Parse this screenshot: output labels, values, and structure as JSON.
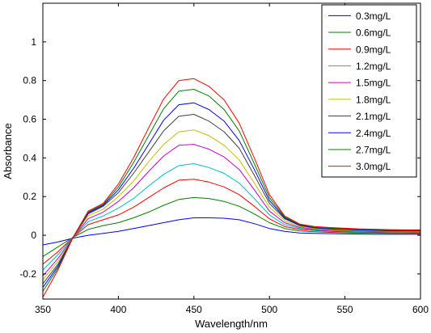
{
  "chart_data": {
    "type": "line",
    "title": "",
    "xlabel": "Wavelength/nm",
    "ylabel": "Absorbance",
    "xlim": [
      350,
      600
    ],
    "ylim": [
      -0.33,
      1.2
    ],
    "xticks": [
      350,
      400,
      450,
      500,
      550,
      600
    ],
    "yticks": [
      -0.2,
      0,
      0.2,
      0.4,
      0.6,
      0.8,
      1
    ],
    "grid": false,
    "legend_position": "top-right",
    "x": [
      350,
      360,
      370,
      380,
      390,
      400,
      410,
      420,
      430,
      440,
      450,
      460,
      470,
      480,
      490,
      500,
      510,
      520,
      530,
      540,
      550,
      560,
      570,
      580,
      590,
      600
    ],
    "series": [
      {
        "name": "0.3mg/L",
        "color": "#0000ff",
        "values": [
          -0.05,
          -0.035,
          -0.015,
          0.0,
          0.01,
          0.02,
          0.035,
          0.05,
          0.065,
          0.08,
          0.09,
          0.09,
          0.088,
          0.08,
          0.06,
          0.035,
          0.02,
          0.012,
          0.01,
          0.008,
          0.007,
          0.006,
          0.005,
          0.005,
          0.005,
          0.005
        ]
      },
      {
        "name": "0.6mg/L",
        "color": "#008000",
        "values": [
          -0.11,
          -0.06,
          -0.01,
          0.03,
          0.05,
          0.065,
          0.09,
          0.12,
          0.155,
          0.185,
          0.195,
          0.19,
          0.175,
          0.15,
          0.11,
          0.065,
          0.035,
          0.022,
          0.018,
          0.015,
          0.013,
          0.012,
          0.011,
          0.01,
          0.01,
          0.01
        ]
      },
      {
        "name": "0.9mg/L",
        "color": "#ff0000",
        "values": [
          -0.15,
          -0.085,
          -0.01,
          0.055,
          0.08,
          0.105,
          0.145,
          0.195,
          0.245,
          0.285,
          0.29,
          0.275,
          0.25,
          0.21,
          0.15,
          0.085,
          0.045,
          0.03,
          0.024,
          0.02,
          0.018,
          0.016,
          0.015,
          0.014,
          0.013,
          0.012
        ]
      },
      {
        "name": "1.2mg/L",
        "color": "#00c0c0",
        "values": [
          -0.18,
          -0.1,
          -0.01,
          0.07,
          0.1,
          0.14,
          0.19,
          0.255,
          0.315,
          0.36,
          0.37,
          0.35,
          0.32,
          0.27,
          0.19,
          0.105,
          0.055,
          0.035,
          0.028,
          0.024,
          0.021,
          0.019,
          0.018,
          0.016,
          0.015,
          0.015
        ]
      },
      {
        "name": "1.5mg/L",
        "color": "#cc00cc",
        "values": [
          -0.21,
          -0.12,
          -0.01,
          0.085,
          0.12,
          0.175,
          0.245,
          0.33,
          0.41,
          0.465,
          0.47,
          0.445,
          0.405,
          0.34,
          0.235,
          0.125,
          0.065,
          0.04,
          0.032,
          0.027,
          0.024,
          0.022,
          0.02,
          0.019,
          0.018,
          0.017
        ]
      },
      {
        "name": "1.8mg/L",
        "color": "#c0c000",
        "values": [
          -0.23,
          -0.135,
          -0.01,
          0.1,
          0.135,
          0.2,
          0.28,
          0.38,
          0.47,
          0.535,
          0.545,
          0.515,
          0.465,
          0.39,
          0.27,
          0.145,
          0.075,
          0.045,
          0.035,
          0.03,
          0.027,
          0.025,
          0.023,
          0.021,
          0.02,
          0.02
        ]
      },
      {
        "name": "2.1mg/L",
        "color": "#404040",
        "values": [
          -0.25,
          -0.15,
          -0.01,
          0.11,
          0.15,
          0.22,
          0.32,
          0.43,
          0.54,
          0.615,
          0.625,
          0.59,
          0.535,
          0.45,
          0.31,
          0.165,
          0.085,
          0.05,
          0.038,
          0.033,
          0.03,
          0.027,
          0.025,
          0.023,
          0.022,
          0.022
        ]
      },
      {
        "name": "2.4mg/L",
        "color": "#0000ff",
        "values": [
          -0.27,
          -0.16,
          -0.01,
          0.115,
          0.155,
          0.235,
          0.345,
          0.47,
          0.595,
          0.675,
          0.685,
          0.65,
          0.59,
          0.49,
          0.34,
          0.18,
          0.09,
          0.052,
          0.04,
          0.035,
          0.032,
          0.029,
          0.027,
          0.025,
          0.024,
          0.024
        ]
      },
      {
        "name": "2.7mg/L",
        "color": "#008000",
        "values": [
          -0.29,
          -0.17,
          -0.01,
          0.12,
          0.16,
          0.25,
          0.375,
          0.515,
          0.655,
          0.745,
          0.755,
          0.72,
          0.65,
          0.54,
          0.37,
          0.195,
          0.095,
          0.055,
          0.042,
          0.037,
          0.034,
          0.031,
          0.029,
          0.027,
          0.026,
          0.026
        ]
      },
      {
        "name": "3.0mg/L",
        "color": "#ff0000",
        "values": [
          -0.32,
          -0.18,
          -0.01,
          0.125,
          0.165,
          0.265,
          0.4,
          0.555,
          0.705,
          0.8,
          0.81,
          0.77,
          0.7,
          0.58,
          0.4,
          0.21,
          0.1,
          0.058,
          0.045,
          0.04,
          0.036,
          0.033,
          0.031,
          0.029,
          0.028,
          0.028
        ]
      }
    ]
  }
}
